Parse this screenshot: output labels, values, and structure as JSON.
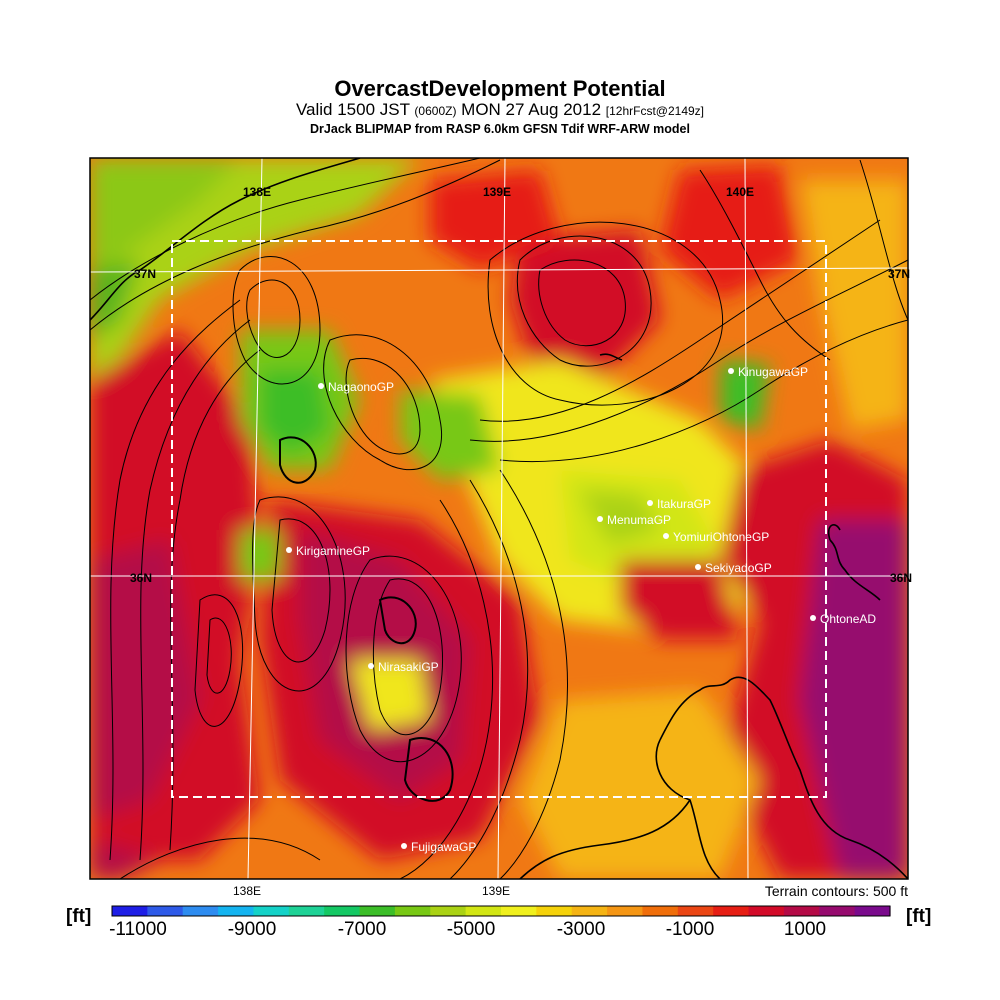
{
  "title": "OvercastDevelopment Potential",
  "subtitle_main_a": "Valid 1500 JST ",
  "subtitle_small_a": "(0600Z)",
  "subtitle_main_b": " MON 27 Aug 2012 ",
  "subtitle_small_b": "[12hrFcst@2149z]",
  "model_line": "DrJack BLIPMAP from RASP 6.0km GFSN Tdif WRF-ARW model",
  "terrain_note": "Terrain contours: 500 ft",
  "unit_label": "[ft]",
  "grid_labels": {
    "lon_top": [
      "138E",
      "139E",
      "140E"
    ],
    "lon_bottom": [
      "138E",
      "139E"
    ],
    "lat_left": [
      "37N",
      "36N"
    ],
    "lat_right": [
      "37N",
      "36N"
    ]
  },
  "stations": [
    {
      "name": "NagaonoGP"
    },
    {
      "name": "KirigamineGP"
    },
    {
      "name": "NirasakiGP"
    },
    {
      "name": "FujigawaGP"
    },
    {
      "name": "ItakuraGP"
    },
    {
      "name": "MenumaGP"
    },
    {
      "name": "YomiuriOhtoneGP"
    },
    {
      "name": "SekiyadoGP"
    },
    {
      "name": "OhtoneAD"
    },
    {
      "name": "KinugawaGP"
    }
  ],
  "colorbar": {
    "labels": [
      "-11000",
      "-9000",
      "-7000",
      "-5000",
      "-3000",
      "-1000",
      "1000"
    ],
    "colors": [
      "#1e1ee6",
      "#2e5ae8",
      "#2e8cf0",
      "#14b4f0",
      "#14d2c8",
      "#1ed296",
      "#14c864",
      "#3cbe28",
      "#78c814",
      "#aad214",
      "#d2e614",
      "#f0f01e",
      "#f5d20a",
      "#f5b414",
      "#f59614",
      "#f06e0a",
      "#eb4614",
      "#e61e14",
      "#d20a28",
      "#b40a46",
      "#960a6e",
      "#7a0a8c"
    ]
  }
}
